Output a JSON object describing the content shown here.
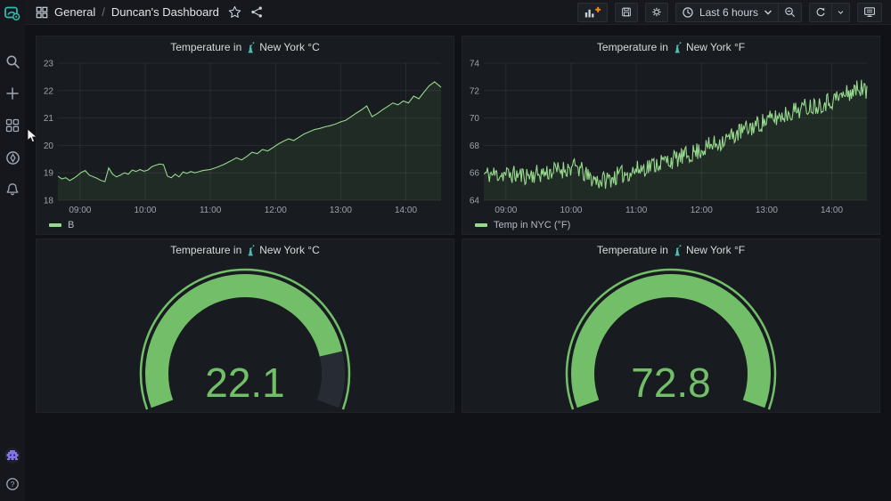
{
  "navbar": {
    "breadcrumb_section": "General",
    "breadcrumb_separator": "/",
    "breadcrumb_title": "Duncan's Dashboard",
    "time_range": "Last 6 hours"
  },
  "icon_names": [
    "grafana-logo",
    "search",
    "plus",
    "dashboards-grid",
    "explore-compass",
    "alert-bell",
    "user-avatar",
    "help-circle",
    "apps-grid",
    "star",
    "share-alt",
    "add-panel",
    "save",
    "settings-gear",
    "clock",
    "chevron-down",
    "zoom-out",
    "refresh",
    "kiosk-monitor",
    "statue-of-liberty",
    "mouse-cursor"
  ],
  "colors": {
    "gauge_green": "#73bf69",
    "line_green": "#96d98d",
    "line_fill": "rgba(115,191,105,0.10)",
    "gauge_rest": "#272c34",
    "grid": "rgba(255,255,255,0.07)",
    "tick_text": "#9da3ac",
    "accent_orange": "#f58518",
    "statue_teal": "#4ec0b4"
  },
  "chart_data": [
    {
      "id": "temp_c",
      "type": "line",
      "title_prefix": "Temperature in",
      "title_icon": "statue-of-liberty",
      "title_suffix": "New York °C",
      "legend": "B",
      "xmin": 8.66,
      "xmax": 14.54,
      "ymin": 18,
      "ymax": 23,
      "y_ticks": [
        18,
        19,
        20,
        21,
        22,
        23
      ],
      "x_tick_hours": [
        9,
        10,
        11,
        12,
        13,
        14
      ],
      "x_tick_labels": [
        "09:00",
        "10:00",
        "11:00",
        "12:00",
        "13:00",
        "14:00"
      ],
      "points": [
        [
          8.66,
          18.88
        ],
        [
          8.72,
          18.78
        ],
        [
          8.78,
          18.82
        ],
        [
          8.84,
          18.72
        ],
        [
          8.9,
          18.8
        ],
        [
          8.96,
          18.9
        ],
        [
          9.02,
          19.02
        ],
        [
          9.08,
          19.08
        ],
        [
          9.14,
          18.92
        ],
        [
          9.2,
          18.86
        ],
        [
          9.26,
          18.8
        ],
        [
          9.32,
          18.72
        ],
        [
          9.38,
          18.68
        ],
        [
          9.44,
          19.18
        ],
        [
          9.5,
          18.95
        ],
        [
          9.56,
          18.85
        ],
        [
          9.62,
          18.92
        ],
        [
          9.68,
          19.0
        ],
        [
          9.74,
          18.95
        ],
        [
          9.8,
          19.1
        ],
        [
          9.86,
          19.05
        ],
        [
          9.92,
          19.12
        ],
        [
          9.98,
          19.06
        ],
        [
          10.04,
          19.1
        ],
        [
          10.1,
          19.22
        ],
        [
          10.16,
          19.28
        ],
        [
          10.22,
          19.32
        ],
        [
          10.28,
          19.3
        ],
        [
          10.34,
          18.88
        ],
        [
          10.4,
          18.82
        ],
        [
          10.46,
          18.95
        ],
        [
          10.52,
          18.85
        ],
        [
          10.58,
          19.03
        ],
        [
          10.64,
          18.98
        ],
        [
          10.7,
          19.05
        ],
        [
          10.76,
          19.0
        ],
        [
          10.82,
          19.04
        ],
        [
          10.88,
          19.08
        ],
        [
          10.94,
          19.1
        ],
        [
          11.0,
          19.12
        ],
        [
          11.1,
          19.2
        ],
        [
          11.2,
          19.3
        ],
        [
          11.3,
          19.42
        ],
        [
          11.4,
          19.55
        ],
        [
          11.48,
          19.47
        ],
        [
          11.56,
          19.6
        ],
        [
          11.64,
          19.75
        ],
        [
          11.72,
          19.7
        ],
        [
          11.8,
          19.85
        ],
        [
          11.88,
          19.8
        ],
        [
          11.96,
          19.92
        ],
        [
          12.04,
          20.05
        ],
        [
          12.12,
          20.15
        ],
        [
          12.2,
          20.24
        ],
        [
          12.28,
          20.18
        ],
        [
          12.36,
          20.3
        ],
        [
          12.44,
          20.42
        ],
        [
          12.52,
          20.5
        ],
        [
          12.6,
          20.58
        ],
        [
          12.68,
          20.62
        ],
        [
          12.76,
          20.68
        ],
        [
          12.84,
          20.72
        ],
        [
          12.92,
          20.78
        ],
        [
          13.0,
          20.86
        ],
        [
          13.08,
          20.92
        ],
        [
          13.16,
          21.05
        ],
        [
          13.24,
          21.18
        ],
        [
          13.32,
          21.3
        ],
        [
          13.4,
          21.44
        ],
        [
          13.48,
          21.05
        ],
        [
          13.56,
          21.16
        ],
        [
          13.64,
          21.3
        ],
        [
          13.72,
          21.42
        ],
        [
          13.8,
          21.55
        ],
        [
          13.88,
          21.48
        ],
        [
          13.96,
          21.62
        ],
        [
          14.04,
          21.55
        ],
        [
          14.12,
          21.8
        ],
        [
          14.2,
          21.7
        ],
        [
          14.28,
          21.95
        ],
        [
          14.36,
          22.18
        ],
        [
          14.44,
          22.32
        ],
        [
          14.5,
          22.2
        ],
        [
          14.54,
          22.12
        ]
      ]
    },
    {
      "id": "temp_f",
      "type": "line",
      "title_prefix": "Temperature in",
      "title_icon": "statue-of-liberty",
      "title_suffix": "New York °F",
      "legend": "Temp in NYC (°F)",
      "xmin": 8.66,
      "xmax": 14.54,
      "ymin": 64,
      "ymax": 74,
      "y_ticks": [
        64,
        66,
        68,
        70,
        72,
        74
      ],
      "x_tick_hours": [
        9,
        10,
        11,
        12,
        13,
        14
      ],
      "x_tick_labels": [
        "09:00",
        "10:00",
        "11:00",
        "12:00",
        "13:00",
        "14:00"
      ],
      "trend": [
        [
          8.66,
          65.9
        ],
        [
          9.0,
          65.9
        ],
        [
          9.3,
          65.8
        ],
        [
          9.6,
          66.0
        ],
        [
          9.9,
          66.3
        ],
        [
          10.1,
          66.4
        ],
        [
          10.25,
          65.7
        ],
        [
          10.45,
          65.4
        ],
        [
          10.6,
          65.6
        ],
        [
          10.8,
          65.9
        ],
        [
          11.0,
          66.2
        ],
        [
          11.2,
          66.5
        ],
        [
          11.4,
          66.8
        ],
        [
          11.6,
          67.0
        ],
        [
          11.8,
          67.3
        ],
        [
          12.0,
          67.7
        ],
        [
          12.2,
          68.1
        ],
        [
          12.4,
          68.5
        ],
        [
          12.6,
          69.0
        ],
        [
          12.8,
          69.4
        ],
        [
          13.0,
          69.8
        ],
        [
          13.2,
          70.1
        ],
        [
          13.4,
          70.5
        ],
        [
          13.6,
          70.8
        ],
        [
          13.8,
          71.0
        ],
        [
          14.0,
          71.3
        ],
        [
          14.2,
          71.7
        ],
        [
          14.35,
          72.0
        ],
        [
          14.45,
          72.3
        ],
        [
          14.54,
          71.8
        ]
      ],
      "noise": {
        "amplitude": 0.68,
        "seed": 11,
        "samples": 420
      }
    },
    {
      "id": "gauge_c",
      "type": "gauge",
      "title_prefix": "Temperature in",
      "title_icon": "statue-of-liberty",
      "title_suffix": "New York °C",
      "value": "22.1",
      "percent": 0.85
    },
    {
      "id": "gauge_f",
      "type": "gauge",
      "title_prefix": "Temperature in",
      "title_icon": "statue-of-liberty",
      "title_suffix": "New York °F",
      "value": "72.8",
      "percent": 1.0
    }
  ]
}
